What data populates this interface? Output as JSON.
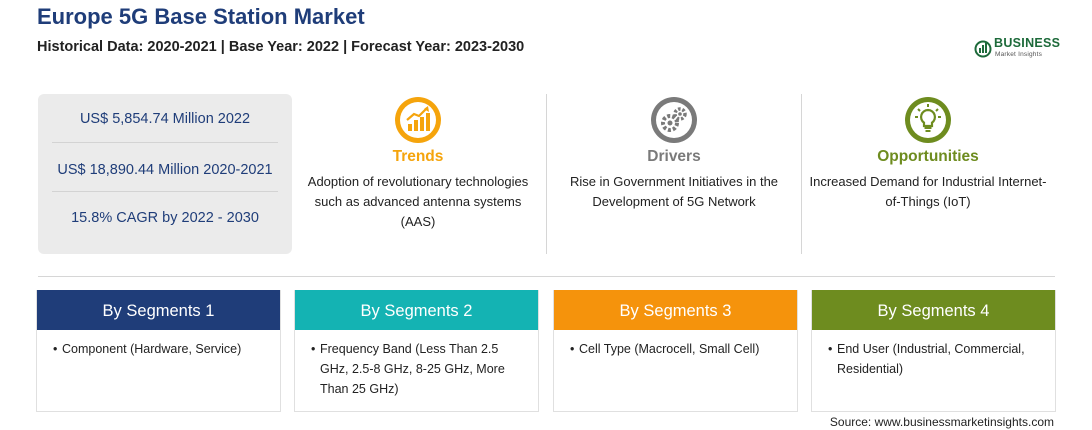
{
  "header": {
    "title": "Europe 5G Base Station Market",
    "subtitle": "Historical Data: 2020-2021 | Base Year: 2022 | Forecast Year: 2023-2030"
  },
  "logo": {
    "word": "BUSINESS",
    "sub": "Market Insights"
  },
  "stats": [
    "US$ 5,854.74 Million 2022",
    "US$ 18,890.44 Million 2020-2021",
    "15.8% CAGR by 2022 - 2030"
  ],
  "features": [
    {
      "title": "Trends",
      "icon": "growth-chart-icon",
      "color": "#f5a40c",
      "text": "Adoption of revolutionary technologies such as advanced antenna systems (AAS)"
    },
    {
      "title": "Drivers",
      "icon": "gears-icon",
      "color": "#7a7a7a",
      "text": "Rise in Government Initiatives in the Development of 5G Network"
    },
    {
      "title": "Opportunities",
      "icon": "lightbulb-icon",
      "color": "#6e8c1f",
      "text": "Increased Demand for Industrial Internet-of-Things (IoT)"
    }
  ],
  "segments": [
    {
      "title": "By Segments 1",
      "color": "#1f3d79",
      "item": "Component (Hardware, Service)"
    },
    {
      "title": "By Segments 2",
      "color": "#14b3b3",
      "item": "Frequency Band (Less Than 2.5 GHz, 2.5-8 GHz, 8-25 GHz, More Than 25 GHz)"
    },
    {
      "title": "By Segments 3",
      "color": "#f5930c",
      "item": "Cell Type (Macrocell, Small Cell)"
    },
    {
      "title": "By Segments 4",
      "color": "#6e8c1f",
      "item": "End User (Industrial, Commercial, Residential)"
    }
  ],
  "bullet": "•",
  "source": "Source: www.businessmarketinsights.com"
}
